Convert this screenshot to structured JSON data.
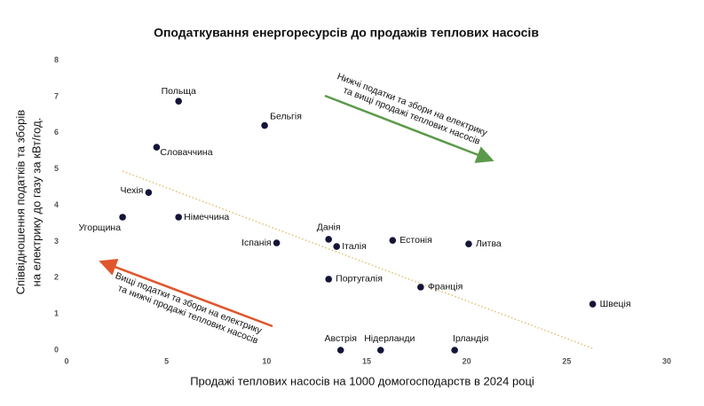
{
  "chart_data": {
    "type": "scatter",
    "title": "Оподаткування енергоресурсів до продажів теплових насосів",
    "x_label": "Продажі теплових насосів на 1000 домогосподарств в 2024 році",
    "y_label": [
      "Співвідношення податків та зборів",
      "на електрику до газу за кВт/год."
    ],
    "labels": [
      "Польща",
      "Бельгія",
      "Словаччина",
      "Чехія",
      "Угорщина",
      "Німеччина",
      "Іспанія",
      "Данія",
      "Італія",
      "Естонія",
      "Литва",
      "Португалія",
      "Франція",
      "Швеція",
      "Австрія",
      "Нідерланди",
      "Ірландія"
    ],
    "x": [
      5.6,
      9.9,
      4.5,
      4.1,
      2.8,
      5.6,
      10.5,
      13.1,
      13.5,
      16.3,
      20.1,
      13.1,
      17.7,
      26.3,
      13.7,
      15.7,
      19.4
    ],
    "values": [
      6.87,
      6.2,
      5.6,
      4.35,
      3.67,
      3.67,
      2.96,
      3.06,
      2.86,
      3.03,
      2.93,
      1.96,
      1.74,
      1.27,
      0,
      0,
      0
    ],
    "color": "#14143a",
    "xlim": [
      0,
      30
    ],
    "xticks": [
      0,
      5,
      10,
      15,
      20,
      25,
      30
    ],
    "ylim": [
      0,
      8
    ],
    "yticks": [
      0,
      1,
      2,
      3,
      4,
      5,
      6,
      7,
      8
    ],
    "trendline": {
      "x": [
        2.8,
        26.3
      ],
      "values": [
        4.94,
        0.05
      ],
      "color": "#e0c070"
    },
    "annotations": [
      {
        "lines": [
          "Нижчі податки та збори на електрику",
          "та вищі продажі теплових насосів"
        ],
        "color": "#5a9a4a"
      },
      {
        "lines": [
          "Вищі податки та збори на електрику",
          "та нижчі продажі теплових насосів"
        ],
        "color": "#e0562c"
      }
    ]
  }
}
